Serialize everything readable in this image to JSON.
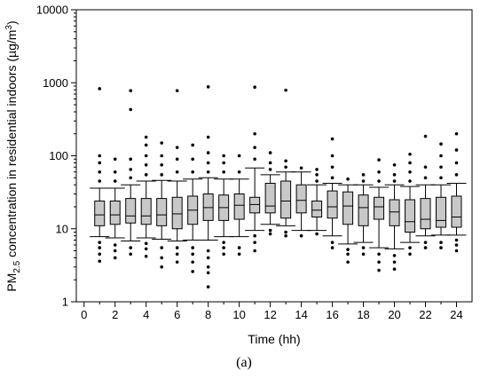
{
  "chart_data": {
    "type": "box",
    "xlabel": "Time (hh)",
    "ylabel_parts": {
      "pre": "PM",
      "sub": "2.5",
      "mid": " concentration in residential indoors (µg/m",
      "sup": "3",
      "post": ")"
    },
    "y_scale": "log",
    "ylim": [
      1,
      10000
    ],
    "y_ticks": [
      1,
      10,
      100,
      1000,
      10000
    ],
    "y_tick_labels": [
      "1",
      "10",
      "100",
      "1000",
      "10000"
    ],
    "xlim": [
      -0.5,
      25
    ],
    "x_ticks": [
      0,
      2,
      4,
      6,
      8,
      10,
      12,
      14,
      16,
      18,
      20,
      22,
      24
    ],
    "x_tick_labels": [
      "0",
      "2",
      "4",
      "6",
      "8",
      "10",
      "12",
      "14",
      "16",
      "18",
      "20",
      "22",
      "24"
    ],
    "box_color": "#c8c8c8",
    "boxes": [
      {
        "x": 1,
        "whisker_low": 7.8,
        "q1": 11,
        "median": 15.5,
        "q3": 24,
        "whisker_high": 36,
        "outliers_low": [
          3.6,
          4.5,
          5.5,
          6.5
        ],
        "outliers_high": [
          45,
          60,
          80,
          100,
          830
        ]
      },
      {
        "x": 2,
        "whisker_low": 7.5,
        "q1": 11.5,
        "median": 15.5,
        "q3": 24,
        "whisker_high": 36,
        "outliers_low": [
          4,
          5,
          6
        ],
        "outliers_high": [
          45,
          60,
          90
        ]
      },
      {
        "x": 3,
        "whisker_low": 6.8,
        "q1": 12,
        "median": 15,
        "q3": 26,
        "whisker_high": 40,
        "outliers_low": [
          4.5,
          5.5
        ],
        "outliers_high": [
          50,
          65,
          90,
          430,
          780
        ]
      },
      {
        "x": 4,
        "whisker_low": 7.5,
        "q1": 11.5,
        "median": 15,
        "q3": 26,
        "whisker_high": 45,
        "outliers_low": [
          4.2,
          5.3,
          6.3
        ],
        "outliers_high": [
          55,
          75,
          100,
          140,
          180
        ]
      },
      {
        "x": 5,
        "whisker_low": 7.2,
        "q1": 11,
        "median": 15.5,
        "q3": 26,
        "whisker_high": 46,
        "outliers_low": [
          3,
          4,
          5.5
        ],
        "outliers_high": [
          55,
          75,
          100,
          150
        ]
      },
      {
        "x": 6,
        "whisker_low": 6.8,
        "q1": 10,
        "median": 16,
        "q3": 27,
        "whisker_high": 45,
        "outliers_low": [
          3.5,
          4.5,
          5.5
        ],
        "outliers_high": [
          60,
          90,
          130,
          780
        ]
      },
      {
        "x": 7,
        "whisker_low": 7,
        "q1": 11.5,
        "median": 18,
        "q3": 28,
        "whisker_high": 48,
        "outliers_low": [
          2.6,
          3.5,
          4.5,
          5.5
        ],
        "outliers_high": [
          60,
          90,
          140
        ]
      },
      {
        "x": 8,
        "whisker_low": 7,
        "q1": 13,
        "median": 19.5,
        "q3": 30,
        "whisker_high": 50,
        "outliers_low": [
          1.6,
          2.5,
          3,
          4,
          5
        ],
        "outliers_high": [
          60,
          80,
          110,
          180,
          880
        ]
      },
      {
        "x": 9,
        "whisker_low": 7.8,
        "q1": 13,
        "median": 19.5,
        "q3": 29,
        "whisker_high": 48,
        "outliers_low": [
          4.5,
          5.5,
          6.5
        ],
        "outliers_high": [
          60,
          80,
          100
        ]
      },
      {
        "x": 10,
        "whisker_low": 7.8,
        "q1": 13.5,
        "median": 21,
        "q3": 30,
        "whisker_high": 48,
        "outliers_low": [
          4.5,
          5.5
        ],
        "outliers_high": [
          60,
          100
        ]
      },
      {
        "x": 11,
        "whisker_low": 9.5,
        "q1": 16.5,
        "median": 21.5,
        "q3": 27,
        "whisker_high": 68,
        "outliers_low": [
          5,
          6.5,
          8
        ],
        "outliers_high": [
          90,
          130,
          200,
          870
        ]
      },
      {
        "x": 12,
        "whisker_low": 11.5,
        "q1": 16.5,
        "median": 20.5,
        "q3": 42,
        "whisker_high": 55,
        "outliers_low": [
          8.5,
          9.5
        ],
        "outliers_high": [
          65,
          80,
          110
        ]
      },
      {
        "x": 13,
        "whisker_low": 11,
        "q1": 14,
        "median": 24,
        "q3": 45,
        "whisker_high": 60,
        "outliers_low": [
          8,
          9
        ],
        "outliers_high": [
          70,
          85,
          790
        ]
      },
      {
        "x": 14,
        "whisker_low": 9.5,
        "q1": 16.5,
        "median": 24.5,
        "q3": 40,
        "whisker_high": 60,
        "outliers_low": [
          8
        ],
        "outliers_high": [
          68
        ]
      },
      {
        "x": 15,
        "whisker_low": 9.5,
        "q1": 14.5,
        "median": 18,
        "q3": 24,
        "whisker_high": 40,
        "outliers_low": [
          8.5
        ],
        "outliers_high": [
          45,
          55,
          65
        ]
      },
      {
        "x": 16,
        "whisker_low": 8,
        "q1": 14,
        "median": 20,
        "q3": 33,
        "whisker_high": 42,
        "outliers_low": [
          5.5,
          6.5
        ],
        "outliers_high": [
          50,
          70,
          100,
          170
        ]
      },
      {
        "x": 17,
        "whisker_low": 6.2,
        "q1": 11.5,
        "median": 20.5,
        "q3": 32,
        "whisker_high": 40,
        "outliers_low": [
          3.5,
          4.5,
          5.2
        ],
        "outliers_high": [
          48
        ]
      },
      {
        "x": 18,
        "whisker_low": 6.5,
        "q1": 11,
        "median": 19.5,
        "q3": 29,
        "whisker_high": 40,
        "outliers_low": [
          4.5,
          5.5
        ],
        "outliers_high": [
          45,
          55
        ]
      },
      {
        "x": 19,
        "whisker_low": 5.5,
        "q1": 13.5,
        "median": 20,
        "q3": 27,
        "whisker_high": 37,
        "outliers_low": [
          2.7,
          3.5,
          4.5
        ],
        "outliers_high": [
          45,
          60,
          88
        ]
      },
      {
        "x": 20,
        "whisker_low": 5.3,
        "q1": 11,
        "median": 17,
        "q3": 25,
        "whisker_high": 40,
        "outliers_low": [
          2.8,
          3.5,
          4.3
        ],
        "outliers_high": [
          45,
          55,
          75
        ]
      },
      {
        "x": 21,
        "whisker_low": 6.5,
        "q1": 9,
        "median": 12.5,
        "q3": 25,
        "whisker_high": 38,
        "outliers_low": [
          4.5,
          5.5
        ],
        "outliers_high": [
          45,
          60,
          80,
          105
        ]
      },
      {
        "x": 22,
        "whisker_low": 8,
        "q1": 10,
        "median": 13.5,
        "q3": 26,
        "whisker_high": 40,
        "outliers_low": [
          5.5,
          6.5
        ],
        "outliers_high": [
          50,
          70,
          185
        ]
      },
      {
        "x": 23,
        "whisker_low": 8.2,
        "q1": 10.5,
        "median": 13,
        "q3": 27,
        "whisker_high": 40,
        "outliers_low": [
          5.5,
          6.5
        ],
        "outliers_high": [
          50,
          70,
          100,
          145
        ]
      },
      {
        "x": 24,
        "whisker_low": 8.2,
        "q1": 10.5,
        "median": 14.5,
        "q3": 28,
        "whisker_high": 42,
        "outliers_low": [
          5,
          6,
          7
        ],
        "outliers_high": [
          55,
          80,
          120,
          200
        ]
      }
    ]
  },
  "caption": "(a)"
}
